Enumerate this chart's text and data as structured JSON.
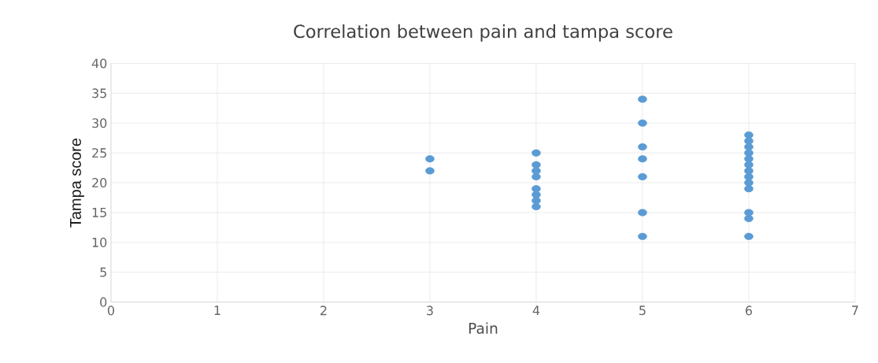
{
  "chart_data": {
    "type": "scatter",
    "title": "Correlation between pain and tampa score",
    "xlabel": "Pain",
    "ylabel": "Tampa score",
    "x": [
      3,
      3,
      4,
      4,
      4,
      4,
      4,
      4,
      4,
      4,
      5,
      5,
      5,
      5,
      5,
      5,
      5,
      6,
      6,
      6,
      6,
      6,
      6,
      6,
      6,
      6,
      6,
      6,
      6,
      6
    ],
    "values": [
      24,
      22,
      25,
      23,
      22,
      21,
      19,
      18,
      17,
      16,
      34,
      30,
      26,
      24,
      21,
      15,
      11,
      28,
      27,
      26,
      25,
      24,
      23,
      22,
      21,
      20,
      19,
      15,
      14,
      11
    ],
    "color": "#5b9bd5",
    "marker": "circle",
    "xlim": [
      0,
      7
    ],
    "xticks": [
      0,
      1,
      2,
      3,
      4,
      5,
      6,
      7
    ],
    "ylim": [
      0,
      40
    ],
    "yticks": [
      0,
      5,
      10,
      15,
      20,
      25,
      30,
      35,
      40
    ],
    "grid": true
  }
}
